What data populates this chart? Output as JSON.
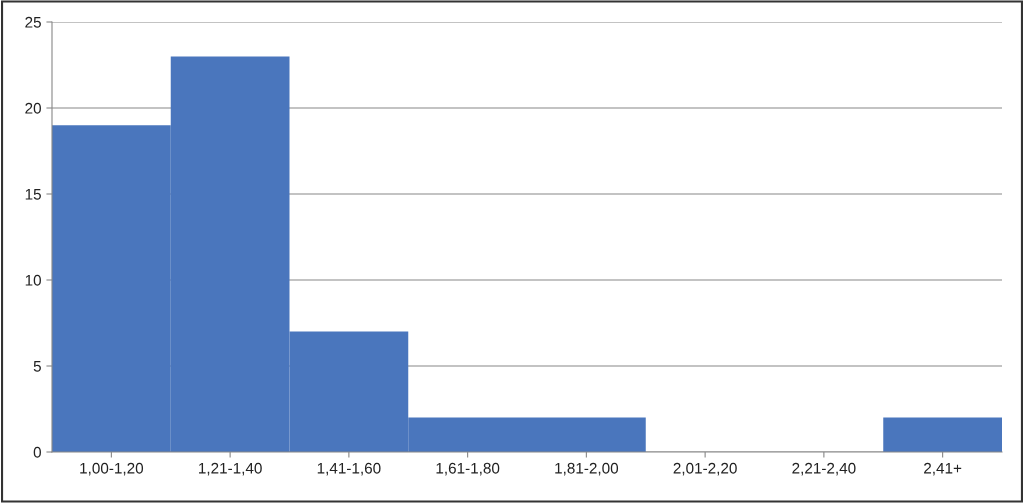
{
  "chart_data": {
    "type": "bar",
    "categories": [
      "1,00-1,20",
      "1,21-1,40",
      "1,41-1,60",
      "1,61-1,80",
      "1,81-2,00",
      "2,01-2,20",
      "2,21-2,40",
      "2,41+"
    ],
    "values": [
      19,
      23,
      7,
      2,
      2,
      0,
      0,
      2
    ],
    "color": "#4a76bd",
    "ylim": [
      0,
      25
    ],
    "yticks": [
      0,
      5,
      10,
      15,
      20,
      25
    ],
    "grid": "y",
    "legend": false
  }
}
